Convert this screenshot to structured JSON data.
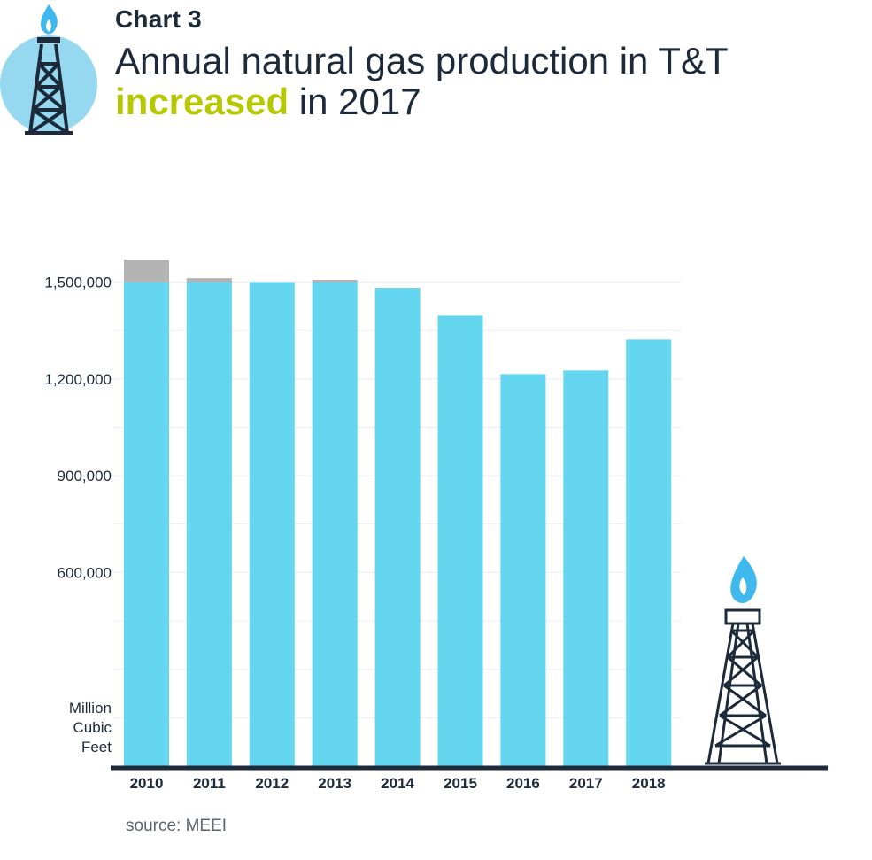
{
  "header": {
    "kicker": "Chart 3",
    "title_part1": "Annual natural gas production in T&T",
    "title_highlight": "increased",
    "title_part2": " in 2017"
  },
  "colors": {
    "bar": "#65d6f0",
    "overflow": "#b3b3b3",
    "highlight": "#b5c800",
    "axis": "#1c2a3a",
    "text": "#1c2a3a"
  },
  "icons": [
    "gas-rig-logo-icon",
    "gas-rig-illustration-icon"
  ],
  "chart_data": {
    "type": "bar",
    "stacked": true,
    "categories": [
      "2010",
      "2011",
      "2012",
      "2013",
      "2014",
      "2015",
      "2016",
      "2017",
      "2018"
    ],
    "series": [
      {
        "values": [
          1500000,
          1500000,
          1500000,
          1500000,
          1482000,
          1396000,
          1215000,
          1226000,
          1322000
        ]
      },
      {
        "values": [
          70000,
          12000,
          0,
          7000,
          0,
          0,
          0,
          0,
          0
        ]
      }
    ],
    "yticks": [
      "600,000",
      "900,000",
      "1,200,000",
      "1,500,000"
    ],
    "ytick_values": [
      600000,
      900000,
      1200000,
      1500000
    ],
    "ylabel": [
      "Million",
      "Cubic",
      "Feet"
    ],
    "ylim": [
      0,
      1570000
    ],
    "grid": true,
    "legend": "none"
  },
  "source": "source: MEEI"
}
